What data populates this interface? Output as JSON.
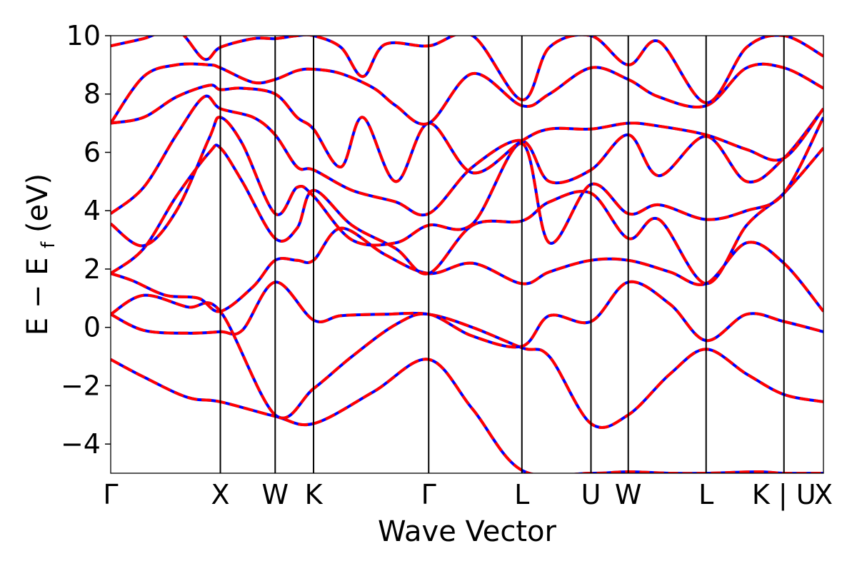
{
  "chart_data": {
    "type": "line",
    "title": "",
    "xlabel": "Wave Vector",
    "ylabel": {
      "main": "E − E",
      "sub": "f",
      "unit": "(eV)"
    },
    "ylim": [
      -5,
      10
    ],
    "xlim": [
      0,
      6.5
    ],
    "yticks": [
      -4,
      -2,
      0,
      2,
      4,
      6,
      8,
      10
    ],
    "ytick_labels": [
      "−4",
      "−2",
      "0",
      "2",
      "4",
      "6",
      "8",
      "10"
    ],
    "kpoints": [
      {
        "label": "Γ",
        "pos": 0
      },
      {
        "label": "X",
        "pos": 1.0
      },
      {
        "label": "W",
        "pos": 1.5
      },
      {
        "label": "K",
        "pos": 1.85
      },
      {
        "label": "Γ",
        "pos": 2.9
      },
      {
        "label": "L",
        "pos": 3.75
      },
      {
        "label": "U",
        "pos": 4.38
      },
      {
        "label": "W",
        "pos": 4.72
      },
      {
        "label": "L",
        "pos": 5.43
      },
      {
        "label": "K | U",
        "pos": 6.14
      },
      {
        "label": "X",
        "pos": 6.5
      }
    ],
    "colors": {
      "solid": "#0000ff",
      "dashed": "#ff0000",
      "kline": "#000000"
    },
    "grid": false,
    "legend": "none",
    "bands": [
      {
        "x": [
          0,
          0.3,
          0.7,
          1.0,
          1.5,
          1.85,
          2.4,
          2.9,
          3.3,
          3.75,
          4.38,
          4.72,
          5.1,
          5.43,
          5.9,
          6.14,
          6.5
        ],
        "y": [
          -1.1,
          -1.7,
          -2.4,
          -2.55,
          -3.05,
          -3.3,
          -2.2,
          -1.1,
          -2.8,
          -4.9,
          -5.0,
          -4.95,
          -5.0,
          -5.0,
          -4.95,
          -5.0,
          -5.0
        ]
      },
      {
        "x": [
          0,
          0.3,
          0.7,
          1.0,
          1.2,
          1.5,
          1.85,
          2.1,
          2.5,
          2.9,
          3.3,
          3.75,
          4.0,
          4.38,
          4.72,
          5.1,
          5.43,
          5.8,
          6.14,
          6.5
        ],
        "y": [
          0.45,
          -0.1,
          -0.2,
          -0.15,
          -0.1,
          1.55,
          0.25,
          0.4,
          0.45,
          0.45,
          0.0,
          -0.7,
          -1.0,
          -3.3,
          -3.0,
          -1.6,
          -0.75,
          -1.6,
          -2.3,
          -2.55
        ]
      },
      {
        "x": [
          0,
          0.3,
          0.7,
          1.0,
          1.5,
          1.85,
          2.2,
          2.6,
          2.9,
          3.3,
          3.75,
          4.0,
          4.38,
          4.72,
          5.1,
          5.43,
          5.8,
          6.14,
          6.5
        ],
        "y": [
          0.45,
          1.1,
          0.7,
          0.55,
          -3.0,
          -2.1,
          -1.0,
          0.1,
          0.45,
          -0.3,
          -0.65,
          0.4,
          0.2,
          1.55,
          0.8,
          -0.45,
          0.45,
          0.2,
          -0.15
        ]
      },
      {
        "x": [
          0,
          0.2,
          0.5,
          0.8,
          1.0,
          1.3,
          1.5,
          1.7,
          1.85,
          2.1,
          2.5,
          2.9,
          3.3,
          3.75,
          4.0,
          4.38,
          4.72,
          5.1,
          5.43,
          5.8,
          6.14,
          6.5
        ],
        "y": [
          1.85,
          1.6,
          1.1,
          1.0,
          0.55,
          1.4,
          2.3,
          2.3,
          2.3,
          3.4,
          2.5,
          1.85,
          2.2,
          1.5,
          1.9,
          2.3,
          2.3,
          1.9,
          1.5,
          2.9,
          2.2,
          0.55
        ]
      },
      {
        "x": [
          0,
          0.3,
          0.6,
          0.9,
          1.0,
          1.2,
          1.5,
          1.7,
          1.85,
          2.2,
          2.6,
          2.9,
          3.3,
          3.75,
          4.0,
          4.38,
          4.72,
          5.0,
          5.43,
          5.8,
          6.14,
          6.5
        ],
        "y": [
          1.85,
          2.7,
          4.5,
          6.0,
          6.15,
          5.0,
          3.05,
          3.4,
          4.7,
          3.5,
          2.7,
          1.85,
          3.5,
          3.65,
          4.3,
          4.6,
          3.05,
          3.7,
          1.5,
          3.5,
          4.6,
          6.15
        ]
      },
      {
        "x": [
          0,
          0.3,
          0.6,
          0.9,
          1.0,
          1.2,
          1.5,
          1.7,
          1.85,
          2.2,
          2.6,
          2.9,
          3.3,
          3.75,
          4.0,
          4.38,
          4.72,
          5.0,
          5.43,
          5.8,
          6.14,
          6.5
        ],
        "y": [
          3.55,
          2.8,
          4.0,
          6.5,
          7.2,
          6.3,
          3.9,
          4.8,
          4.5,
          3.0,
          2.9,
          3.5,
          3.55,
          6.3,
          2.9,
          4.9,
          3.9,
          4.2,
          3.7,
          4.0,
          4.6,
          7.2
        ]
      },
      {
        "x": [
          0,
          0.3,
          0.6,
          0.85,
          1.0,
          1.3,
          1.5,
          1.7,
          1.85,
          2.2,
          2.6,
          2.9,
          3.3,
          3.75,
          4.0,
          4.38,
          4.72,
          5.0,
          5.43,
          5.8,
          6.14,
          6.5
        ],
        "y": [
          3.9,
          4.8,
          6.6,
          7.9,
          7.5,
          7.2,
          6.6,
          5.5,
          5.4,
          4.7,
          4.3,
          3.9,
          5.5,
          6.4,
          5.0,
          5.4,
          6.6,
          5.2,
          6.55,
          5.0,
          5.8,
          7.5
        ]
      },
      {
        "x": [
          0,
          0.3,
          0.6,
          0.9,
          1.0,
          1.2,
          1.5,
          1.7,
          1.85,
          2.1,
          2.3,
          2.6,
          2.9,
          3.3,
          3.75,
          4.0,
          4.38,
          4.72,
          5.0,
          5.43,
          5.8,
          6.14,
          6.5
        ],
        "y": [
          7.0,
          7.2,
          7.9,
          8.3,
          8.15,
          8.2,
          8.0,
          7.2,
          6.8,
          5.5,
          7.2,
          5.0,
          7.0,
          5.3,
          6.4,
          6.8,
          6.8,
          7.0,
          6.9,
          6.6,
          6.1,
          5.8,
          7.5
        ]
      },
      {
        "x": [
          0,
          0.3,
          0.6,
          0.9,
          1.0,
          1.3,
          1.5,
          1.7,
          1.85,
          2.1,
          2.4,
          2.6,
          2.9,
          3.3,
          3.75,
          4.0,
          4.38,
          4.72,
          5.0,
          5.43,
          5.8,
          6.14,
          6.5
        ],
        "y": [
          7.0,
          8.6,
          9.0,
          9.0,
          8.9,
          8.4,
          8.5,
          8.8,
          8.85,
          8.7,
          8.2,
          7.6,
          7.0,
          8.7,
          7.6,
          8.0,
          8.9,
          8.5,
          7.9,
          7.6,
          8.9,
          8.9,
          8.2
        ]
      },
      {
        "x": [
          0,
          0.3,
          0.6,
          0.85,
          1.0,
          1.3,
          1.5,
          1.7,
          1.85,
          2.1,
          2.3,
          2.5,
          2.9,
          3.3,
          3.75,
          4.0,
          4.38,
          4.72,
          5.0,
          5.43,
          5.8,
          6.14,
          6.5
        ],
        "y": [
          9.65,
          9.9,
          10.2,
          9.2,
          9.6,
          9.9,
          9.9,
          10.0,
          10.0,
          9.6,
          8.6,
          9.7,
          9.65,
          10.0,
          7.8,
          9.6,
          10.0,
          9.0,
          9.8,
          7.7,
          9.6,
          10.0,
          9.3
        ]
      }
    ]
  }
}
